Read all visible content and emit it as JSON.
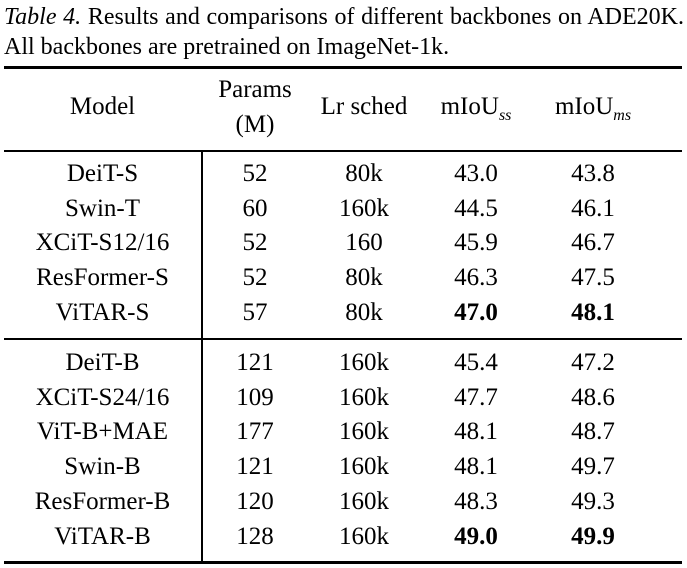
{
  "caption": {
    "label": "Table 4.",
    "text": " Results and comparisons of different backbones on ADE20K. All backbones are pretrained on ImageNet-1k."
  },
  "table": {
    "headers": {
      "model": "Model",
      "params_line1": "Params",
      "params_line2": "(M)",
      "lr_sched": "Lr sched",
      "miou_ss_base": "mIoU",
      "miou_ss_sub": "ss",
      "miou_ms_base": "mIoU",
      "miou_ms_sub": "ms"
    },
    "groups": [
      {
        "rows": [
          {
            "model": "DeiT-S",
            "params": "52",
            "lr_sched": "80k",
            "miou_ss": "43.0",
            "miou_ms": "43.8",
            "bold": false
          },
          {
            "model": "Swin-T",
            "params": "60",
            "lr_sched": "160k",
            "miou_ss": "44.5",
            "miou_ms": "46.1",
            "bold": false
          },
          {
            "model": "XCiT-S12/16",
            "params": "52",
            "lr_sched": "160",
            "miou_ss": "45.9",
            "miou_ms": "46.7",
            "bold": false
          },
          {
            "model": "ResFormer-S",
            "params": "52",
            "lr_sched": "80k",
            "miou_ss": "46.3",
            "miou_ms": "47.5",
            "bold": false
          },
          {
            "model": "ViTAR-S",
            "params": "57",
            "lr_sched": "80k",
            "miou_ss": "47.0",
            "miou_ms": "48.1",
            "bold": true
          }
        ]
      },
      {
        "rows": [
          {
            "model": "DeiT-B",
            "params": "121",
            "lr_sched": "160k",
            "miou_ss": "45.4",
            "miou_ms": "47.2",
            "bold": false
          },
          {
            "model": "XCiT-S24/16",
            "params": "109",
            "lr_sched": "160k",
            "miou_ss": "47.7",
            "miou_ms": "48.6",
            "bold": false
          },
          {
            "model": "ViT-B+MAE",
            "params": "177",
            "lr_sched": "160k",
            "miou_ss": "48.1",
            "miou_ms": "48.7",
            "bold": false
          },
          {
            "model": "Swin-B",
            "params": "121",
            "lr_sched": "160k",
            "miou_ss": "48.1",
            "miou_ms": "49.7",
            "bold": false
          },
          {
            "model": "ResFormer-B",
            "params": "120",
            "lr_sched": "160k",
            "miou_ss": "48.3",
            "miou_ms": "49.3",
            "bold": false
          },
          {
            "model": "ViTAR-B",
            "params": "128",
            "lr_sched": "160k",
            "miou_ss": "49.0",
            "miou_ms": "49.9",
            "bold": true
          }
        ]
      }
    ]
  }
}
